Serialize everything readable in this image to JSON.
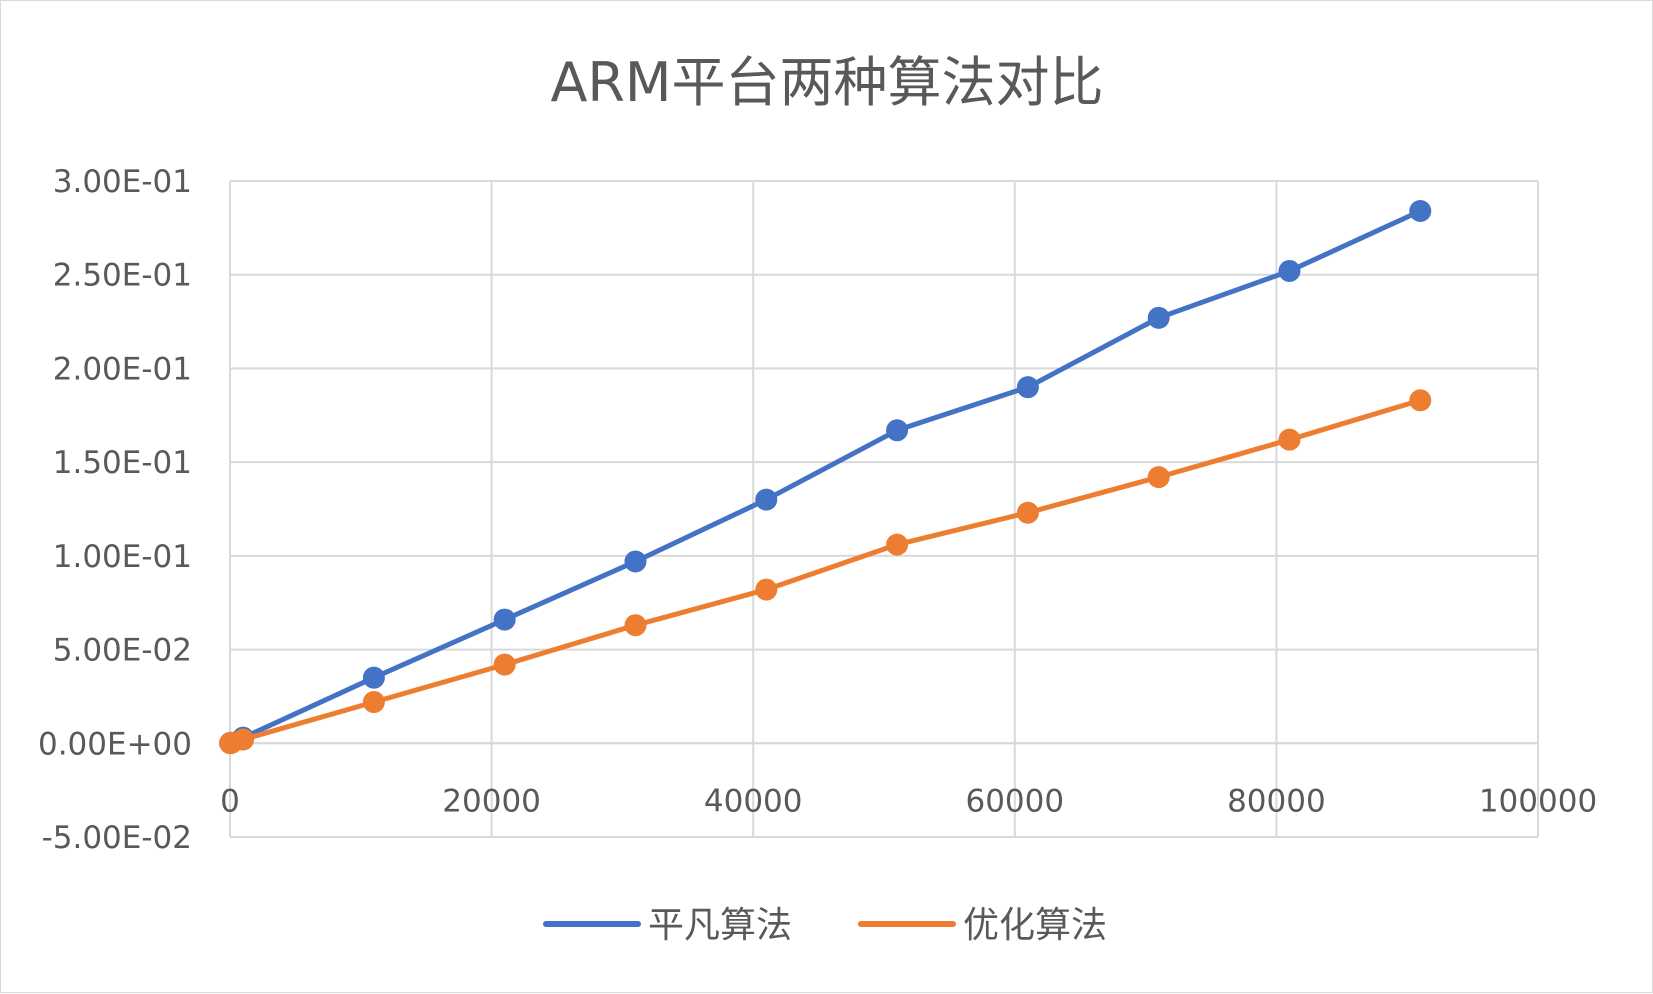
{
  "chart_data": {
    "type": "scatter",
    "title": "ARM平台两种算法对比",
    "xlabel": "",
    "ylabel": "",
    "xlim": [
      0,
      100000
    ],
    "ylim": [
      -0.05,
      0.3
    ],
    "x_ticks": [
      "0",
      "20000",
      "40000",
      "60000",
      "80000",
      "100000"
    ],
    "y_ticks": [
      "3.00E-01",
      "2.50E-01",
      "2.00E-01",
      "1.50E-01",
      "1.00E-01",
      "5.00E-02",
      "0.00E+00",
      "-5.00E-02"
    ],
    "grid": true,
    "legend_position": "bottom",
    "series": [
      {
        "name": "平凡算法",
        "color": "#4472c4",
        "x": [
          10,
          100,
          1000,
          11000,
          21000,
          31000,
          41000,
          51000,
          61000,
          71000,
          81000,
          91000
        ],
        "y": [
          0.0001,
          0.0003,
          0.003,
          0.035,
          0.066,
          0.097,
          0.13,
          0.167,
          0.19,
          0.227,
          0.252,
          0.284
        ]
      },
      {
        "name": "优化算法",
        "color": "#ed7d31",
        "x": [
          10,
          100,
          1000,
          11000,
          21000,
          31000,
          41000,
          51000,
          61000,
          71000,
          81000,
          91000
        ],
        "y": [
          0.0001,
          0.0002,
          0.002,
          0.022,
          0.042,
          0.063,
          0.082,
          0.106,
          0.123,
          0.142,
          0.162,
          0.183
        ]
      }
    ]
  }
}
